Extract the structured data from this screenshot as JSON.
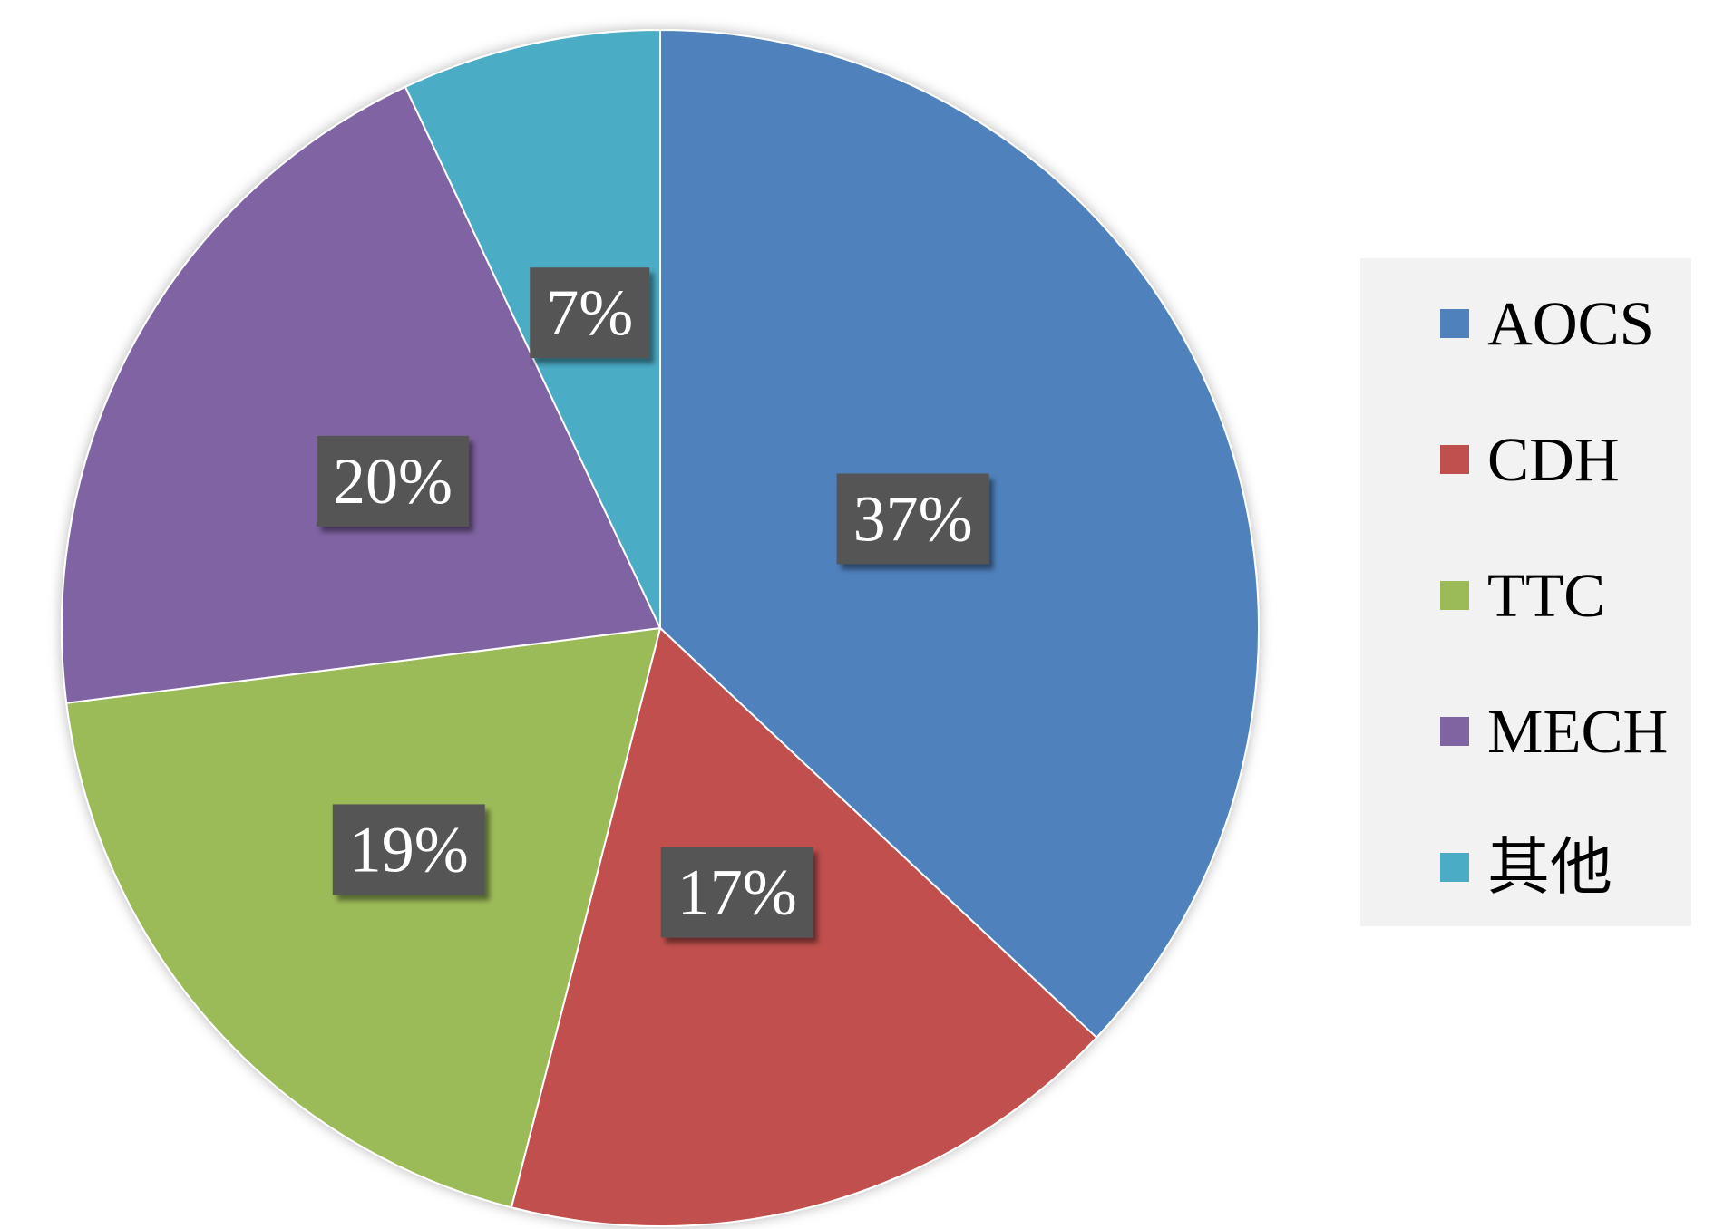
{
  "chart_data": {
    "type": "pie",
    "title": "",
    "categories": [
      "AOCS",
      "CDH",
      "TTC",
      "MECH",
      "其他"
    ],
    "values": [
      37,
      17,
      19,
      20,
      7
    ],
    "data_labels": [
      "37%",
      "17%",
      "19%",
      "20%",
      "7%"
    ],
    "colors": [
      "#4F81BD",
      "#C0504D",
      "#9BBB59",
      "#8064A2",
      "#4BACC6"
    ],
    "start": "12 o'clock",
    "direction": "clockwise",
    "legend_placement": "right"
  },
  "label_style": {
    "box_color": "#555555",
    "text_color": "#FFFFFF"
  },
  "legend_style": {
    "background": "#F2F2F2"
  }
}
